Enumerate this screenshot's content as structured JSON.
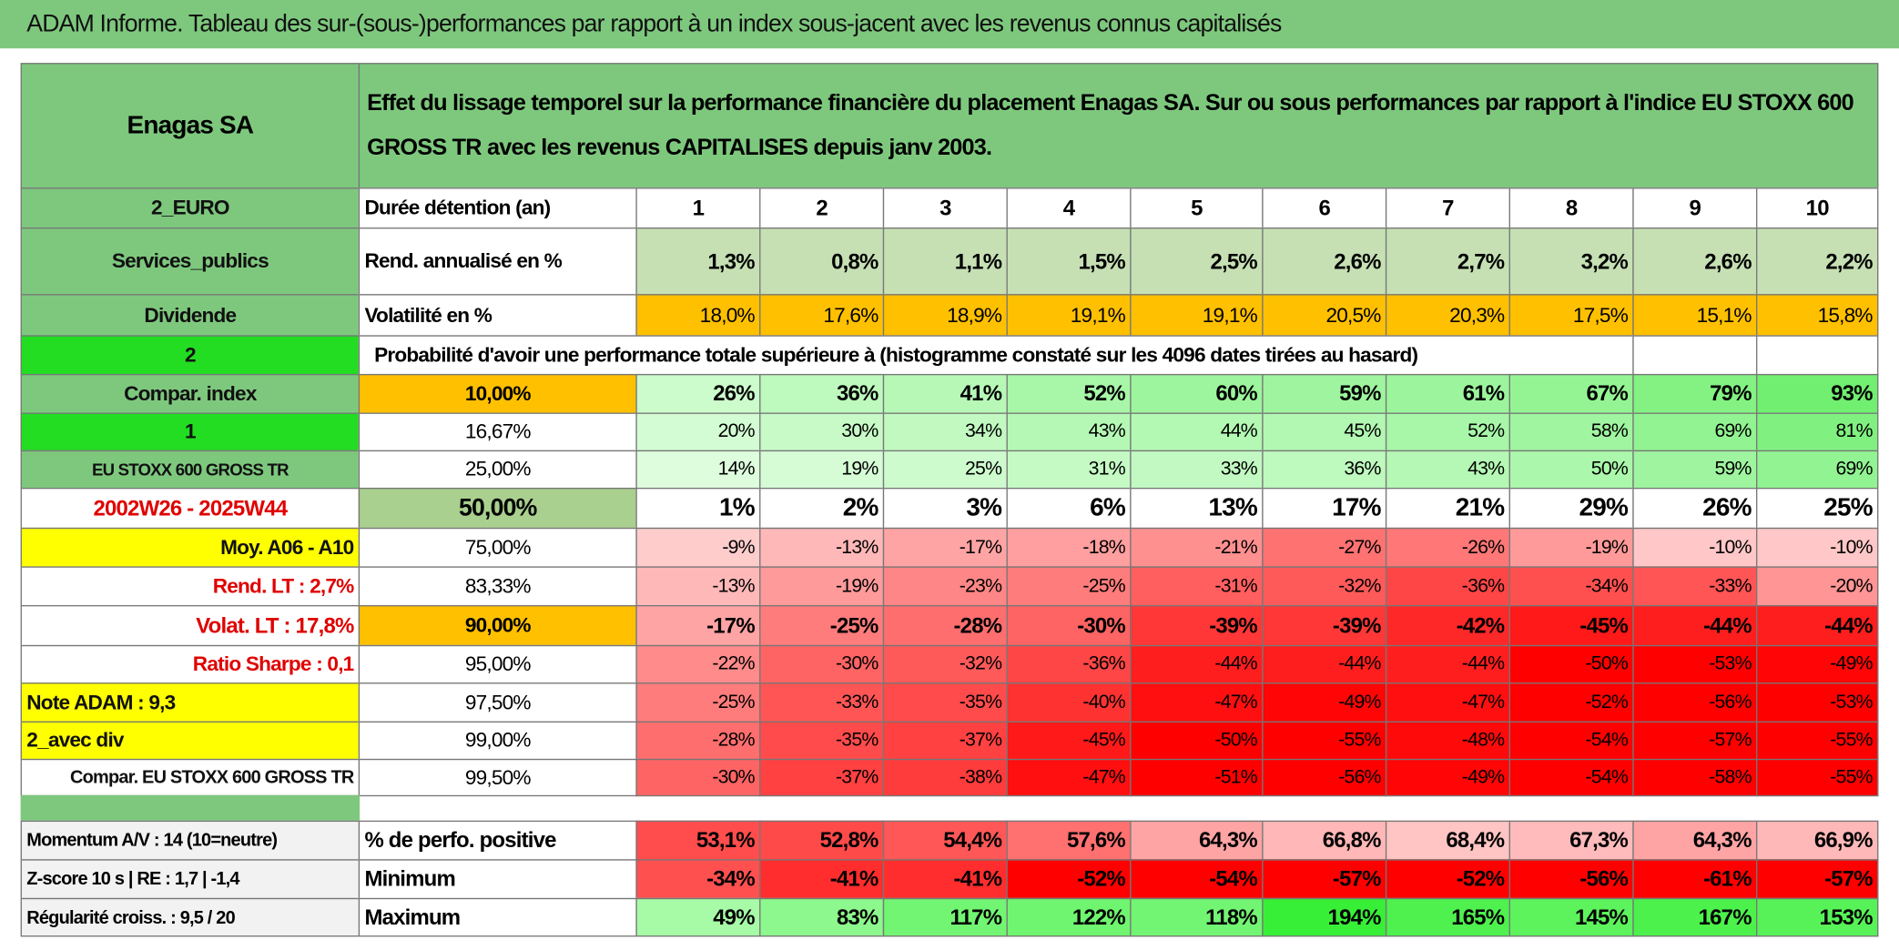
{
  "title": "ADAM Informe. Tableau des sur-(sous-)performances par rapport à un index sous-jacent avec les revenus connus capitalisés",
  "header": {
    "name": "Enagas SA",
    "description": "Effet du lissage temporel sur la performance financière du placement Enagas SA. Sur ou sous performances par rapport à l'indice EU STOXX 600 GROSS TR avec les revenus CAPITALISES depuis janv 2003."
  },
  "table": {
    "rows": [
      {
        "label": "2_EURO",
        "label2": "Durée détention (an)",
        "values": [
          "1",
          "2",
          "3",
          "4",
          "5",
          "6",
          "7",
          "8",
          "9",
          "10"
        ]
      },
      {
        "label": "Services_publics",
        "label2": "Rend. annualisé en %",
        "values": [
          "1,3%",
          "0,8%",
          "1,1%",
          "1,5%",
          "2,5%",
          "2,6%",
          "2,7%",
          "3,2%",
          "2,6%",
          "2,2%"
        ]
      },
      {
        "label": "Dividende",
        "label2": "Volatilité en %",
        "values": [
          "18,0%",
          "17,6%",
          "18,9%",
          "19,1%",
          "19,1%",
          "20,5%",
          "20,3%",
          "17,5%",
          "15,1%",
          "15,8%"
        ]
      },
      {
        "label": "2",
        "label2": "Probabilité d'avoir une performance totale supérieure à (histogramme constaté sur les 4096 dates tirées au hasard)"
      },
      {
        "label": "Compar. index",
        "label2": "10,00%",
        "values": [
          "26%",
          "36%",
          "41%",
          "52%",
          "60%",
          "59%",
          "61%",
          "67%",
          "79%",
          "93%"
        ]
      },
      {
        "label": "1",
        "label2": "16,67%",
        "values": [
          "20%",
          "30%",
          "34%",
          "43%",
          "44%",
          "45%",
          "52%",
          "58%",
          "69%",
          "81%"
        ]
      },
      {
        "label": "EU STOXX 600 GROSS TR",
        "label2": "25,00%",
        "values": [
          "14%",
          "19%",
          "25%",
          "31%",
          "33%",
          "36%",
          "43%",
          "50%",
          "59%",
          "69%"
        ]
      },
      {
        "label": "2002W26 - 2025W44",
        "label2": "50,00%",
        "values": [
          "1%",
          "2%",
          "3%",
          "6%",
          "13%",
          "17%",
          "21%",
          "29%",
          "26%",
          "25%"
        ]
      },
      {
        "label": "Moy. A06 - A10",
        "label2": "75,00%",
        "values": [
          "-9%",
          "-13%",
          "-17%",
          "-18%",
          "-21%",
          "-27%",
          "-26%",
          "-19%",
          "-10%",
          "-10%"
        ]
      },
      {
        "label": "Rend. LT :   2,7%",
        "label2": "83,33%",
        "values": [
          "-13%",
          "-19%",
          "-23%",
          "-25%",
          "-31%",
          "-32%",
          "-36%",
          "-34%",
          "-33%",
          "-20%"
        ]
      },
      {
        "label": "Volat. LT :   17,8%",
        "label2": "90,00%",
        "values": [
          "-17%",
          "-25%",
          "-28%",
          "-30%",
          "-39%",
          "-39%",
          "-42%",
          "-45%",
          "-44%",
          "-44%"
        ]
      },
      {
        "label": "Ratio Sharpe :    0,1",
        "label2": "95,00%",
        "values": [
          "-22%",
          "-30%",
          "-32%",
          "-36%",
          "-44%",
          "-44%",
          "-44%",
          "-50%",
          "-53%",
          "-49%"
        ]
      },
      {
        "label": "Note ADAM : 9,3",
        "label2": "97,50%",
        "values": [
          "-25%",
          "-33%",
          "-35%",
          "-40%",
          "-47%",
          "-49%",
          "-47%",
          "-52%",
          "-56%",
          "-53%"
        ]
      },
      {
        "label": "2_avec div",
        "label2": "99,00%",
        "values": [
          "-28%",
          "-35%",
          "-37%",
          "-45%",
          "-50%",
          "-55%",
          "-48%",
          "-54%",
          "-57%",
          "-55%"
        ]
      },
      {
        "label": "Compar. EU STOXX 600 GROSS TR",
        "label2": "99,50%",
        "values": [
          "-30%",
          "-37%",
          "-38%",
          "-47%",
          "-51%",
          "-56%",
          "-49%",
          "-54%",
          "-58%",
          "-55%"
        ]
      }
    ]
  },
  "summary": {
    "rows": [
      {
        "label": "Momentum A/V : 14 (10=neutre)",
        "label2": "% de perfo. positive",
        "values": [
          "53,1%",
          "52,8%",
          "54,4%",
          "57,6%",
          "64,3%",
          "66,8%",
          "68,4%",
          "67,3%",
          "64,3%",
          "66,9%"
        ]
      },
      {
        "label": "Z-score 10 s | RE : 1,7 | -1,4",
        "label2": "Minimum",
        "values": [
          "-34%",
          "-41%",
          "-41%",
          "-52%",
          "-54%",
          "-57%",
          "-52%",
          "-56%",
          "-61%",
          "-57%"
        ]
      },
      {
        "label": "Régularité croiss. : 9,5 / 20",
        "label2": "Maximum",
        "values": [
          "49%",
          "83%",
          "117%",
          "122%",
          "118%",
          "194%",
          "165%",
          "145%",
          "167%",
          "153%"
        ]
      }
    ]
  }
}
